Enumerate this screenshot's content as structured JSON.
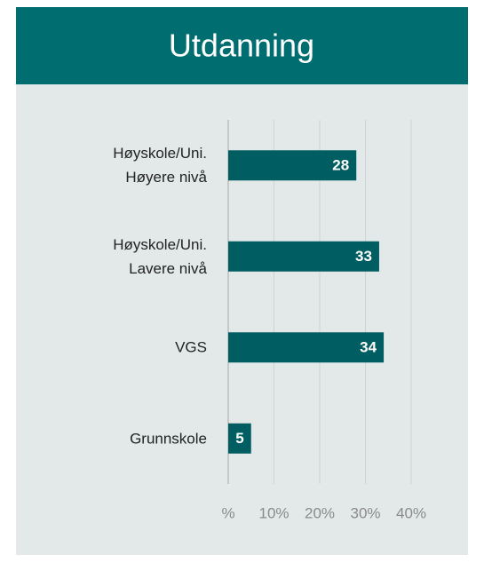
{
  "chart_data": {
    "type": "bar",
    "orientation": "horizontal",
    "title": "Utdanning",
    "categories": [
      "Høyskole/Uni.\nHøyere nivå",
      "Høyskole/Uni.\nLavere nivå",
      "VGS",
      "Grunnskole"
    ],
    "values": [
      28,
      33,
      34,
      5
    ],
    "color": "#005e62",
    "xlim": [
      0,
      40
    ],
    "xticks": [
      {
        "value": 0,
        "label": "%"
      },
      {
        "value": 10,
        "label": "10%"
      },
      {
        "value": 20,
        "label": "20%"
      },
      {
        "value": 30,
        "label": "30%"
      },
      {
        "value": 40,
        "label": "40%"
      }
    ],
    "grid": true
  }
}
